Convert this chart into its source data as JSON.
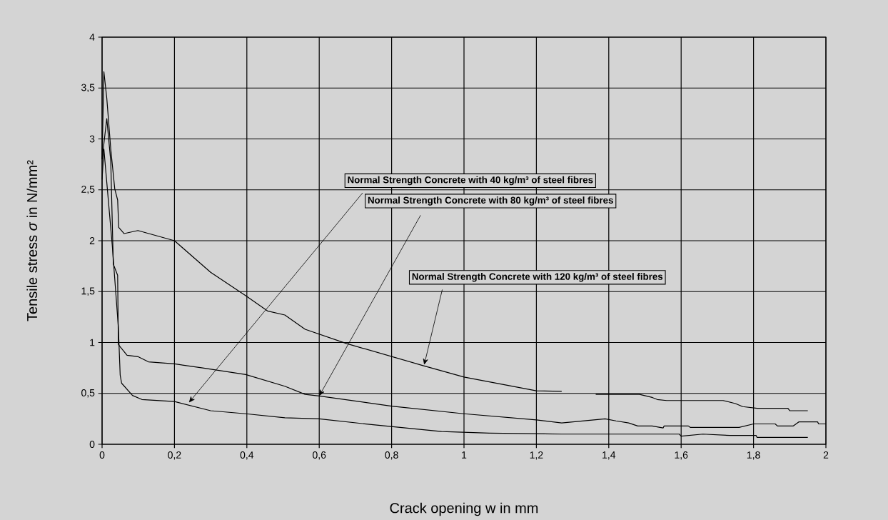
{
  "chart_data": {
    "type": "line",
    "xlabel": "Crack opening  w in mm",
    "ylabel": "Tensile stress  *σ* in N/mm²",
    "xlim": [
      0,
      2
    ],
    "ylim": [
      0,
      4
    ],
    "xticks": [
      0,
      {
        "value": 0.2,
        "label": "0,2"
      },
      {
        "value": 0.4,
        "label": "0,4"
      },
      {
        "value": 0.6,
        "label": "0,6"
      },
      {
        "value": 0.8,
        "label": "0,8"
      },
      1,
      {
        "value": 1.2,
        "label": "1,2"
      },
      {
        "value": 1.4,
        "label": "1,4"
      },
      {
        "value": 1.6,
        "label": "1,6"
      },
      {
        "value": 1.8,
        "label": "1,8"
      },
      2
    ],
    "yticks": [
      0,
      {
        "value": 0.5,
        "label": "0,5"
      },
      1,
      {
        "value": 1.5,
        "label": "1,5"
      },
      2,
      {
        "value": 2.5,
        "label": "2,5"
      },
      3,
      {
        "value": 3.5,
        "label": "3,5"
      },
      4
    ],
    "grid": true,
    "series": [
      {
        "color": "#000000",
        "x": [
          0,
          0.005,
          0.028,
          0.045,
          0.05,
          0.054,
          0.084,
          0.11,
          0.2,
          0.3,
          0.397,
          0.505,
          0.6,
          0.754,
          0.938,
          1.07,
          1.27,
          1.595,
          1.6,
          1.66,
          1.735,
          1.807,
          1.81,
          1.95
        ],
        "values": [
          2.6,
          2.9,
          1.96,
          1.15,
          0.68,
          0.6,
          0.48,
          0.44,
          0.42,
          0.33,
          0.3,
          0.26,
          0.25,
          0.19,
          0.125,
          0.11,
          0.1,
          0.1,
          0.08,
          0.1,
          0.087,
          0.087,
          0.067,
          0.067
        ]
      },
      {
        "color": "#000000",
        "x": [
          0,
          0.013,
          0.024,
          0.031,
          0.043,
          0.045,
          0.069,
          0.1,
          0.128,
          0.2,
          0.278,
          0.397,
          0.505,
          0.561,
          0.6,
          0.8,
          1.0,
          1.2,
          1.27,
          1.39,
          1.42,
          1.455,
          1.48,
          1.52,
          1.55,
          1.553,
          1.62,
          1.625,
          1.76,
          1.8,
          1.86,
          1.866,
          1.91,
          1.925,
          1.977,
          1.98,
          2.0
        ],
        "values": [
          2.8,
          3.2,
          2.78,
          1.77,
          1.66,
          0.98,
          0.875,
          0.86,
          0.81,
          0.79,
          0.75,
          0.685,
          0.57,
          0.49,
          0.475,
          0.375,
          0.3,
          0.24,
          0.21,
          0.25,
          0.23,
          0.21,
          0.18,
          0.18,
          0.16,
          0.18,
          0.18,
          0.166,
          0.166,
          0.2,
          0.2,
          0.18,
          0.18,
          0.22,
          0.22,
          0.2,
          0.2
        ]
      },
      {
        "color": "#000000",
        "x": [
          0,
          0.005,
          0.013,
          0.024,
          0.035,
          0.043,
          0.046,
          0.061,
          0.099,
          0.2,
          0.3,
          0.397,
          0.457,
          0.505,
          0.561,
          0.675,
          0.885,
          1.0,
          1.2,
          1.27,
          1.32,
          1.364,
          1.485,
          1.52,
          1.534,
          1.56,
          1.716,
          1.75,
          1.77,
          1.81,
          1.895,
          1.9,
          1.95
        ],
        "values": [
          2.8,
          3.66,
          3.4,
          2.9,
          2.51,
          2.4,
          2.13,
          2.07,
          2.1,
          2.0,
          1.69,
          1.46,
          1.31,
          1.27,
          1.13,
          0.99,
          0.775,
          0.66,
          0.525,
          0.52,
          null,
          0.49,
          0.49,
          0.46,
          0.44,
          0.43,
          0.43,
          0.4,
          0.37,
          0.354,
          0.354,
          0.33,
          0.33
        ]
      }
    ],
    "annotations": [
      {
        "text": "Normal Strength Concrete with 40 kg/m³ of steel fibres",
        "x": 0.24,
        "y": 0.41
      },
      {
        "text": "Normal Strength Concrete with 80 kg/m³ of steel fibres",
        "x": 0.6,
        "y": 0.475
      },
      {
        "text": "Normal Strength Concrete with 120 kg/m³ of steel fibres",
        "x": 0.89,
        "y": 0.78
      }
    ]
  }
}
